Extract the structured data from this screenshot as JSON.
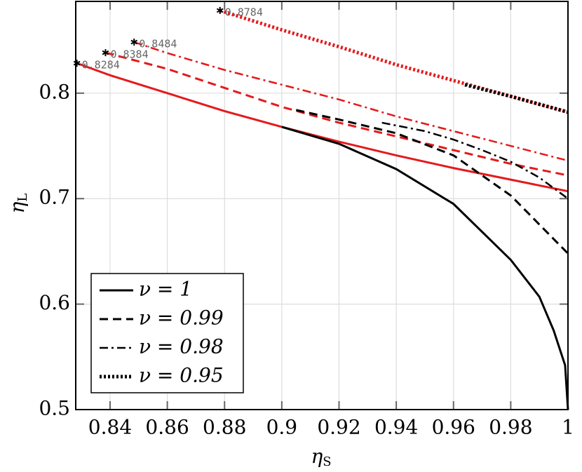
{
  "chart_data": {
    "type": "line",
    "xlabel": {
      "text": "η",
      "sub": "S"
    },
    "ylabel": {
      "text": "η",
      "sub": "L"
    },
    "xlim": [
      0.828,
      1
    ],
    "ylim": [
      0.5,
      0.887
    ],
    "xticks": [
      0.84,
      0.86,
      0.88,
      0.9,
      0.92,
      0.94,
      0.96,
      0.98,
      1
    ],
    "yticks": [
      0.5,
      0.6,
      0.7,
      0.8
    ],
    "grid": true,
    "legend": "lower left",
    "series": [
      {
        "color": "#e41a1c",
        "style": "solid",
        "x": [
          0.8284,
          0.84,
          0.86,
          0.88,
          0.9,
          0.92,
          0.94,
          0.96,
          0.98,
          1
        ],
        "values": [
          0.8284,
          0.817,
          0.8,
          0.783,
          0.768,
          0.754,
          0.741,
          0.729,
          0.718,
          0.707
        ]
      },
      {
        "color": "#e41a1c",
        "style": "dashed",
        "x": [
          0.8384,
          0.86,
          0.88,
          0.9,
          0.92,
          0.94,
          0.96,
          0.98,
          1
        ],
        "values": [
          0.8384,
          0.823,
          0.805,
          0.787,
          0.772,
          0.759,
          0.746,
          0.733,
          0.722
        ]
      },
      {
        "color": "#e41a1c",
        "style": "dashdot",
        "x": [
          0.8484,
          0.86,
          0.88,
          0.9,
          0.92,
          0.94,
          0.96,
          0.98,
          1
        ],
        "values": [
          0.8484,
          0.838,
          0.822,
          0.808,
          0.794,
          0.778,
          0.764,
          0.75,
          0.736
        ]
      },
      {
        "color": "#e41a1c",
        "style": "dotted",
        "x": [
          0.8784,
          0.9,
          0.92,
          0.94,
          0.96,
          0.98,
          1
        ],
        "values": [
          0.8784,
          0.86,
          0.844,
          0.827,
          0.812,
          0.797,
          0.782
        ]
      },
      {
        "name": "ν = 1",
        "color": "#000000",
        "style": "solid",
        "x": [
          0.9,
          0.92,
          0.94,
          0.96,
          0.98,
          0.99,
          0.995,
          0.999,
          1
        ],
        "values": [
          0.768,
          0.752,
          0.728,
          0.695,
          0.642,
          0.607,
          0.575,
          0.542,
          0.5
        ]
      },
      {
        "name": "ν = 0.99",
        "color": "#000000",
        "style": "dashed",
        "x": [
          0.905,
          0.92,
          0.94,
          0.96,
          0.98,
          1
        ],
        "values": [
          0.784,
          0.775,
          0.762,
          0.741,
          0.703,
          0.648
        ]
      },
      {
        "name": "ν = 0.98",
        "color": "#000000",
        "style": "dashdot",
        "x": [
          0.935,
          0.95,
          0.96,
          0.97,
          0.98,
          0.99,
          1
        ],
        "values": [
          0.772,
          0.764,
          0.756,
          0.746,
          0.735,
          0.72,
          0.7
        ]
      },
      {
        "name": "ν = 0.95",
        "color": "#000000",
        "style": "dotted",
        "x": [
          0.964,
          0.98,
          1
        ],
        "values": [
          0.808,
          0.797,
          0.782
        ]
      }
    ],
    "annotations": [
      {
        "x": 0.8284,
        "y": 0.8284,
        "label": "0.8284"
      },
      {
        "x": 0.8384,
        "y": 0.8384,
        "label": "0.8384"
      },
      {
        "x": 0.8484,
        "y": 0.8484,
        "label": "0.8484"
      },
      {
        "x": 0.8784,
        "y": 0.8784,
        "label": "0.8784"
      }
    ]
  }
}
